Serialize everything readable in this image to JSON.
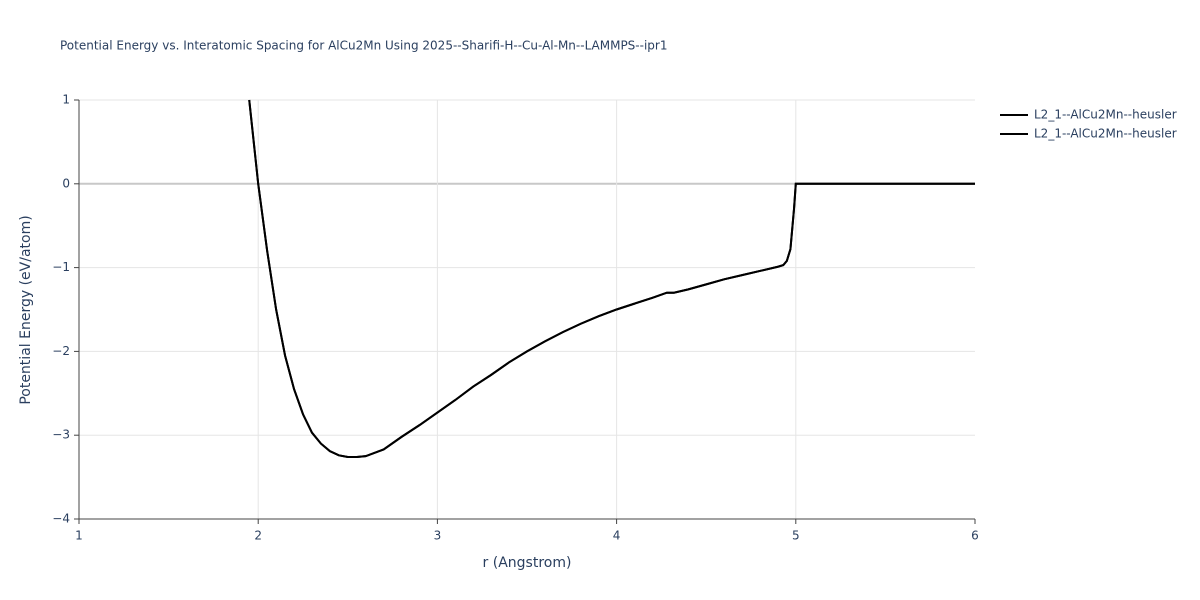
{
  "chart_data": {
    "type": "line",
    "title": "Potential Energy vs. Interatomic Spacing for AlCu2Mn Using 2025--Sharifi-H--Cu-Al-Mn--LAMMPS--ipr1",
    "x_label": "r (Angstrom)",
    "y_label": "Potential Energy (eV/atom)",
    "x": [
      1.95,
      2.0,
      2.05,
      2.1,
      2.15,
      2.2,
      2.25,
      2.3,
      2.35,
      2.4,
      2.45,
      2.5,
      2.55,
      2.6,
      2.7,
      2.8,
      2.9,
      3.0,
      3.1,
      3.2,
      3.3,
      3.4,
      3.5,
      3.6,
      3.7,
      3.8,
      3.9,
      4.0,
      4.1,
      4.2,
      4.28,
      4.32,
      4.4,
      4.5,
      4.6,
      4.7,
      4.8,
      4.9,
      4.93,
      4.95,
      4.97,
      4.99,
      5.0,
      5.5,
      6.0
    ],
    "series": [
      {
        "name": "L2_1--AlCu2Mn--heusler",
        "color": "#000000",
        "values": [
          1,
          0,
          -0.8,
          -1.5,
          -2.05,
          -2.45,
          -2.75,
          -2.97,
          -3.1,
          -3.19,
          -3.24,
          -3.26,
          -3.26,
          -3.25,
          -3.17,
          -3.02,
          -2.88,
          -2.73,
          -2.58,
          -2.42,
          -2.28,
          -2.13,
          -2.0,
          -1.88,
          -1.77,
          -1.67,
          -1.58,
          -1.5,
          -1.43,
          -1.36,
          -1.3,
          -1.3,
          -1.26,
          -1.2,
          -1.14,
          -1.09,
          -1.04,
          -0.99,
          -0.97,
          -0.92,
          -0.78,
          -0.3,
          0,
          0,
          0
        ]
      },
      {
        "name": "L2_1--AlCu2Mn--heusler",
        "color": "#000000",
        "values": [
          1,
          0,
          -0.8,
          -1.5,
          -2.05,
          -2.45,
          -2.75,
          -2.97,
          -3.1,
          -3.19,
          -3.24,
          -3.26,
          -3.26,
          -3.25,
          -3.17,
          -3.02,
          -2.88,
          -2.73,
          -2.58,
          -2.42,
          -2.28,
          -2.13,
          -2.0,
          -1.88,
          -1.77,
          -1.67,
          -1.58,
          -1.5,
          -1.43,
          -1.36,
          -1.3,
          -1.3,
          -1.26,
          -1.2,
          -1.14,
          -1.09,
          -1.04,
          -0.99,
          -0.97,
          -0.92,
          -0.78,
          -0.3,
          0,
          0,
          0
        ]
      }
    ],
    "xlim": [
      1,
      6
    ],
    "xticks": [
      1,
      2,
      3,
      4,
      5,
      6
    ],
    "ylim": [
      -4,
      1
    ],
    "yticks": [
      {
        "value": -4,
        "label": "−4"
      },
      {
        "value": -3,
        "label": "−3"
      },
      {
        "value": -2,
        "label": "−2"
      },
      {
        "value": -1,
        "label": "−1"
      },
      0,
      1
    ],
    "grid": true,
    "legend_position": "top-right"
  }
}
